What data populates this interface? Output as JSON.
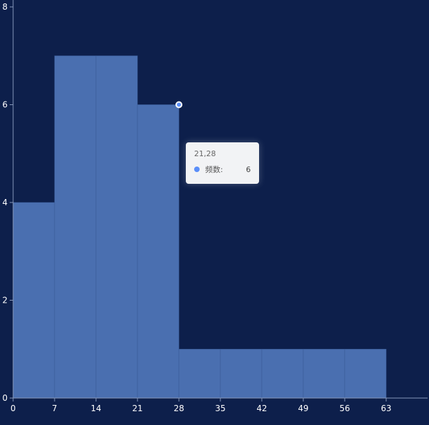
{
  "chart_data": {
    "type": "bar",
    "histogram": true,
    "bins": [
      {
        "x0": 0,
        "x1": 7,
        "value": 4
      },
      {
        "x0": 7,
        "x1": 14,
        "value": 7
      },
      {
        "x0": 14,
        "x1": 21,
        "value": 7
      },
      {
        "x0": 21,
        "x1": 28,
        "value": 6
      },
      {
        "x0": 28,
        "x1": 35,
        "value": 1
      },
      {
        "x0": 35,
        "x1": 42,
        "value": 1
      },
      {
        "x0": 42,
        "x1": 49,
        "value": 1
      },
      {
        "x0": 49,
        "x1": 56,
        "value": 1
      },
      {
        "x0": 56,
        "x1": 63,
        "value": 1
      }
    ],
    "x_ticks": [
      "0",
      "7",
      "14",
      "21",
      "28",
      "35",
      "42",
      "49",
      "56",
      "63"
    ],
    "y_ticks": [
      "0",
      "2",
      "4",
      "6",
      "8"
    ],
    "xlim": [
      0,
      70
    ],
    "ylim": [
      0,
      8
    ],
    "grid": false,
    "colors": {
      "background": "#0d1f4b",
      "bar": "#4a6fb0",
      "bar_border": "#3b5c98",
      "axis": "#8899bb",
      "tooltip_marker": "#5b8ff9"
    }
  },
  "tooltip": {
    "title": "21,28",
    "series_name": "频数:",
    "value": "6"
  }
}
